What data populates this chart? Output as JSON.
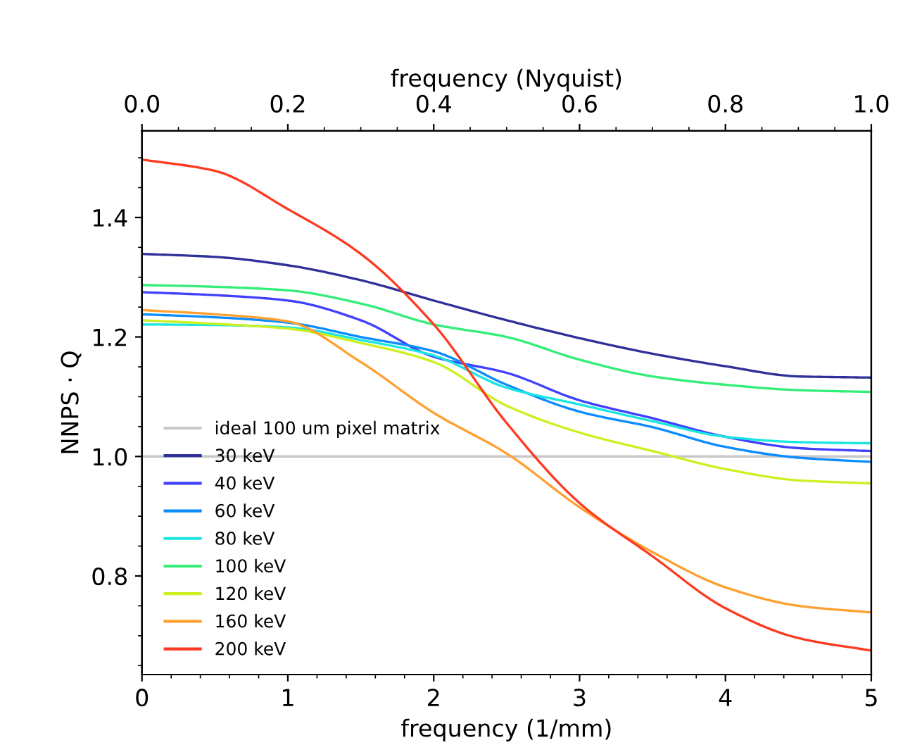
{
  "chart_data": {
    "type": "line",
    "xlabel": "frequency (1/mm)",
    "ylabel": "NNPS · Q",
    "x2label": "frequency (Nyquist)",
    "x": [
      0,
      0.5,
      1,
      1.5,
      2,
      2.5,
      3,
      3.5,
      4,
      4.5,
      5
    ],
    "xlim": [
      0,
      5
    ],
    "xticks": [
      0,
      1,
      2,
      3,
      4,
      5
    ],
    "x2lim": [
      0.0,
      1.0
    ],
    "x2ticks": [
      {
        "value": 0,
        "label": "0.0"
      },
      0.2,
      0.4,
      0.6,
      0.8,
      {
        "value": 1,
        "label": "1.0"
      }
    ],
    "ylim": [
      0.635,
      1.545
    ],
    "yticks": [
      0.8,
      {
        "value": 1,
        "label": "1.0"
      },
      1.2,
      1.4
    ],
    "legend": "bottom left",
    "grid": false,
    "marker": "none",
    "line_style": "solid",
    "series": [
      {
        "name": "ideal 100 um pixel matrix",
        "color": "#c8c8c8",
        "x": [
          0,
          5
        ],
        "values": [
          1.0,
          1.0
        ]
      },
      {
        "name": "30 keV",
        "color": "#30309a",
        "values": [
          1.339,
          1.334,
          1.32,
          1.295,
          1.261,
          1.228,
          1.198,
          1.172,
          1.151,
          1.134,
          1.132
        ]
      },
      {
        "name": "40 keV",
        "color": "#4040ff",
        "values": [
          1.275,
          1.27,
          1.261,
          1.228,
          1.167,
          1.14,
          1.094,
          1.064,
          1.033,
          1.014,
          1.009
        ]
      },
      {
        "name": "60 keV",
        "color": "#0a8cff",
        "values": [
          1.238,
          1.233,
          1.224,
          1.2,
          1.176,
          1.12,
          1.075,
          1.049,
          1.016,
          0.998,
          0.991
        ]
      },
      {
        "name": "80 keV",
        "color": "#19e6e0",
        "values": [
          1.221,
          1.22,
          1.216,
          1.195,
          1.169,
          1.115,
          1.087,
          1.059,
          1.033,
          1.024,
          1.022
        ]
      },
      {
        "name": "100 keV",
        "color": "#33ee77",
        "values": [
          1.287,
          1.284,
          1.278,
          1.256,
          1.221,
          1.2,
          1.162,
          1.134,
          1.12,
          1.111,
          1.108
        ]
      },
      {
        "name": "120 keV",
        "color": "#ccf020",
        "values": [
          1.228,
          1.222,
          1.214,
          1.19,
          1.158,
          1.085,
          1.04,
          1.009,
          0.979,
          0.96,
          0.955
        ]
      },
      {
        "name": "160 keV",
        "color": "#ffa030",
        "values": [
          1.245,
          1.238,
          1.226,
          1.158,
          1.073,
          1.005,
          0.915,
          0.84,
          0.781,
          0.75,
          0.739
        ]
      },
      {
        "name": "200 keV",
        "color": "#ff3a20",
        "values": [
          1.497,
          1.478,
          1.414,
          1.339,
          1.221,
          1.056,
          0.922,
          0.833,
          0.746,
          0.696,
          0.675
        ]
      }
    ]
  }
}
